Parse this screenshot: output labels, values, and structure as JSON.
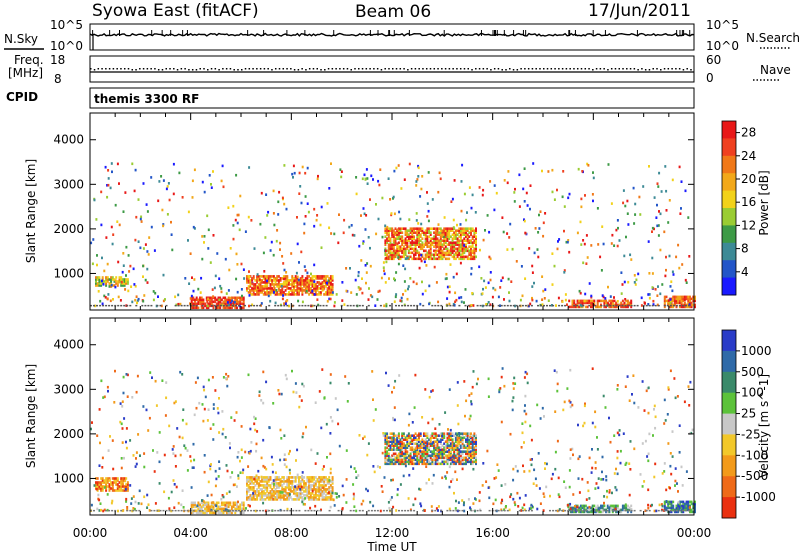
{
  "header": {
    "station": "Syowa East (fitACF)",
    "beam": "Beam 06",
    "date": "17/Jun/2011"
  },
  "strips": {
    "nsky_label": "N.Sky",
    "nsky_top": "10^5",
    "nsky_bottom": "10^0",
    "nsearch_top": "10^5",
    "nsearch_bottom": "10^0",
    "nsearch_label": "N.Search",
    "freq_label_1": "Freq.",
    "freq_label_2": "[MHz]",
    "freq_top": "18",
    "freq_bottom": "8",
    "nave_top": "60",
    "nave_bottom": "0",
    "nave_label": "Nave",
    "cpid_label": "CPID",
    "cpid_value": "themis 3300 RF"
  },
  "chart_data": [
    {
      "type": "heatmap",
      "name": "power",
      "ylabel": "Slant Range [km]",
      "xlabel": "Time UT",
      "xticks": [
        "00:00",
        "04:00",
        "08:00",
        "12:00",
        "16:00",
        "20:00",
        "00:00"
      ],
      "yticks": [
        "1000",
        "2000",
        "3000",
        "4000"
      ],
      "ylim": [
        180,
        4600
      ],
      "xlim_hours": [
        0,
        24
      ],
      "colorbar": {
        "label": "Power [dB]",
        "ticks": [
          "4",
          "8",
          "12",
          "16",
          "20",
          "24",
          "28"
        ],
        "colors": [
          "#1a1aff",
          "#2255c8",
          "#3d8a96",
          "#3d9a46",
          "#9acc33",
          "#f2d21a",
          "#f2a81a",
          "#f07818",
          "#ef4020",
          "#e81818"
        ]
      },
      "regions": [
        {
          "t0": 4.0,
          "t1": 6.1,
          "r0": 200,
          "r1": 460,
          "c": [
            7,
            9
          ]
        },
        {
          "t0": 6.2,
          "t1": 9.6,
          "r0": 500,
          "r1": 950,
          "c": [
            5,
            9
          ]
        },
        {
          "t0": 0.2,
          "t1": 1.5,
          "r0": 700,
          "r1": 900,
          "c": [
            3,
            7
          ]
        },
        {
          "t0": 11.7,
          "t1": 15.3,
          "r0": 1300,
          "r1": 2000,
          "c": [
            4,
            9
          ]
        },
        {
          "t0": 19.0,
          "t1": 21.5,
          "r0": 220,
          "r1": 400,
          "c": [
            6,
            9
          ]
        },
        {
          "t0": 22.8,
          "t1": 24.0,
          "r0": 220,
          "r1": 450,
          "c": [
            6,
            9
          ]
        }
      ]
    },
    {
      "type": "heatmap",
      "name": "velocity",
      "ylabel": "Slant Range [km]",
      "xlabel": "Time UT",
      "xticks": [
        "00:00",
        "04:00",
        "08:00",
        "12:00",
        "16:00",
        "20:00",
        "00:00"
      ],
      "yticks": [
        "1000",
        "2000",
        "3000",
        "4000"
      ],
      "ylim": [
        180,
        4600
      ],
      "xlim_hours": [
        0,
        24
      ],
      "colorbar": {
        "label": "Velocity [m s^-1]",
        "ticks": [
          "1000",
          "500",
          "100",
          "25",
          "-25",
          "-100",
          "-500",
          "-1000"
        ],
        "colors": [
          "#2a3cc8",
          "#2f6aa8",
          "#3a8a6a",
          "#5cc23a",
          "#c8c8c8",
          "#f2c82a",
          "#f29a1a",
          "#ef6a18",
          "#ea3010"
        ]
      },
      "regions": [
        {
          "t0": 4.0,
          "t1": 6.1,
          "r0": 200,
          "r1": 460,
          "c": [
            4,
            6
          ]
        },
        {
          "t0": 6.2,
          "t1": 9.6,
          "r0": 500,
          "r1": 1000,
          "c": [
            4,
            6
          ]
        },
        {
          "t0": 0.2,
          "t1": 1.5,
          "r0": 700,
          "r1": 1000,
          "c": [
            5,
            8
          ]
        },
        {
          "t0": 11.7,
          "t1": 15.3,
          "r0": 1300,
          "r1": 2000,
          "c": [
            0,
            8
          ]
        },
        {
          "t0": 19.0,
          "t1": 21.5,
          "r0": 220,
          "r1": 400,
          "c": [
            1,
            4
          ]
        },
        {
          "t0": 22.8,
          "t1": 24.0,
          "r0": 220,
          "r1": 450,
          "c": [
            0,
            3
          ]
        }
      ]
    }
  ]
}
